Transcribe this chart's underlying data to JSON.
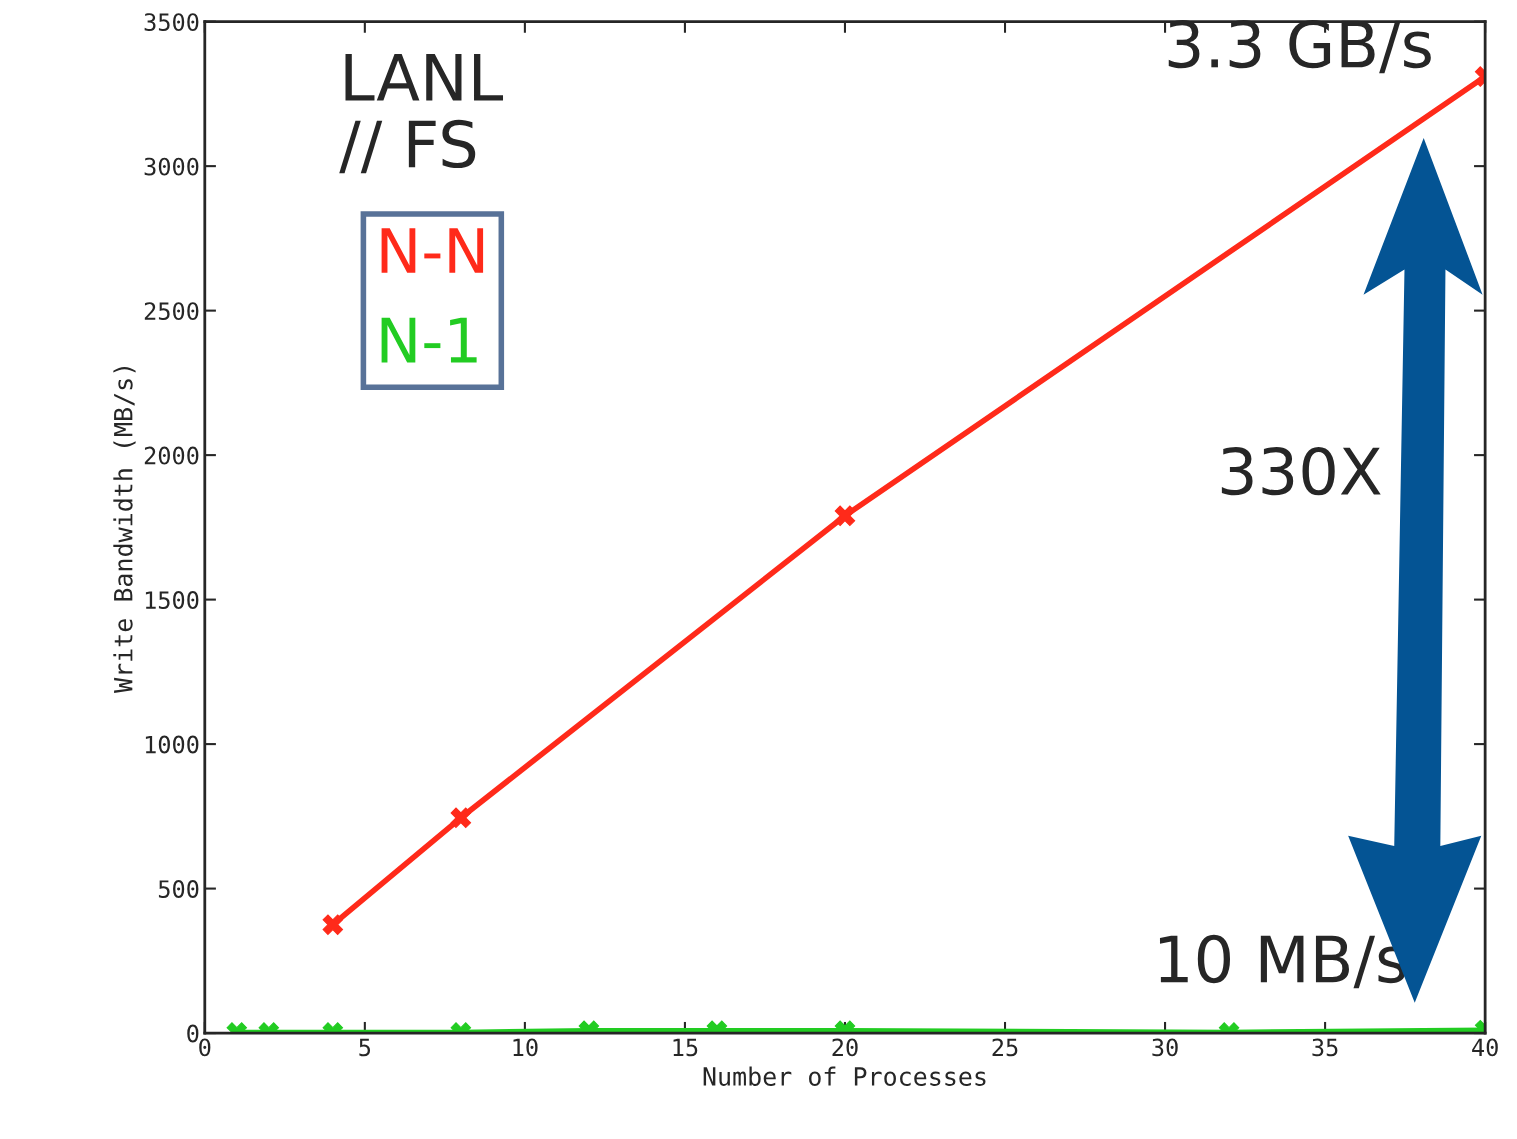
{
  "chart_data": {
    "type": "line",
    "xlabel": "Number of Processes",
    "ylabel": "Write Bandwidth (MB/s)",
    "xlim": [
      0,
      40
    ],
    "ylim": [
      0,
      3500
    ],
    "xticks": [
      0,
      5,
      10,
      15,
      20,
      25,
      30,
      35,
      40
    ],
    "yticks": [
      0,
      500,
      1000,
      1500,
      2000,
      2500,
      3000,
      3500
    ],
    "grid": false,
    "legend": "top left",
    "marker": "cross",
    "line_style": "solid",
    "series": [
      {
        "name": "N-N",
        "color": "#ff2a1a",
        "x": [
          4,
          8,
          20,
          40
        ],
        "values": [
          375,
          745,
          1790,
          3310
        ]
      },
      {
        "name": "N-1",
        "color": "#22cc22",
        "x": [
          1,
          2,
          4,
          8,
          12,
          16,
          20,
          32,
          40
        ],
        "values": [
          2,
          2,
          2,
          2,
          8,
          8,
          8,
          2,
          10
        ]
      }
    ],
    "annotations": [
      "LANL\n// FS",
      {
        "text": "3.3 GB/s",
        "x": 40,
        "y": 3310
      },
      "330X",
      {
        "text": "10 MB/s",
        "x": 40,
        "y": 10
      }
    ]
  }
}
